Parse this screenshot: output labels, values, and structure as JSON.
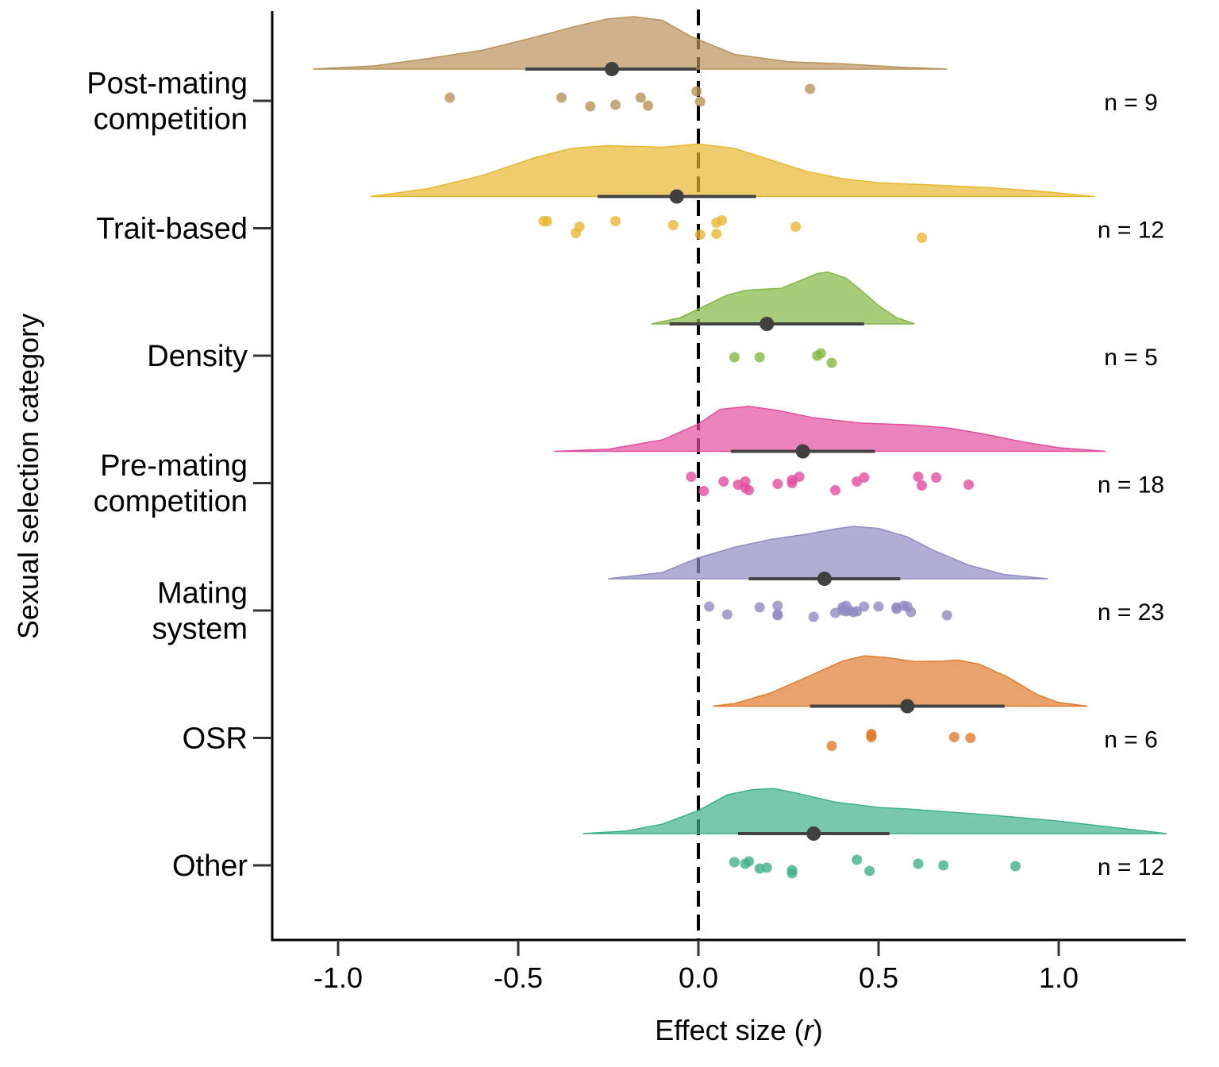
{
  "chart_data": {
    "type": "raincloud",
    "xlabel": "Effect size",
    "xlabel_symbol": "r",
    "ylabel": "Sexual selection category",
    "xlim": [
      -1.2,
      1.4
    ],
    "xticks": [
      {
        "value": -1.0,
        "label": "-1.0"
      },
      {
        "value": -0.5,
        "label": "-0.5"
      },
      {
        "value": 0.0,
        "label": "0.0"
      },
      {
        "value": 0.5,
        "label": "0.5"
      },
      {
        "value": 1.0,
        "label": "1.0"
      }
    ],
    "reference_line": 0.0,
    "categories": [
      {
        "label_lines": [
          "Post-mating",
          "competition"
        ],
        "n_label": "n = 9",
        "color": "#b8925a",
        "mean": -0.24,
        "ci": [
          -0.48,
          -0.005
        ],
        "density_range": [
          -1.07,
          0.69
        ],
        "density": [
          [
            -1.07,
            0.0
          ],
          [
            -0.9,
            0.06
          ],
          [
            -0.75,
            0.2
          ],
          [
            -0.6,
            0.36
          ],
          [
            -0.47,
            0.58
          ],
          [
            -0.35,
            0.8
          ],
          [
            -0.25,
            0.96
          ],
          [
            -0.18,
            1.0
          ],
          [
            -0.1,
            0.93
          ],
          [
            -0.02,
            0.62
          ],
          [
            0.1,
            0.28
          ],
          [
            0.25,
            0.14
          ],
          [
            0.4,
            0.1
          ],
          [
            0.55,
            0.04
          ],
          [
            0.69,
            0.0
          ]
        ],
        "points": [
          [
            -0.69,
            0.3
          ],
          [
            -0.38,
            0.3
          ],
          [
            -0.3,
            -0.25
          ],
          [
            -0.23,
            -0.15
          ],
          [
            -0.16,
            0.3
          ],
          [
            -0.14,
            -0.2
          ],
          [
            -0.005,
            0.7
          ],
          [
            0.005,
            0.05
          ],
          [
            0.31,
            0.85
          ]
        ]
      },
      {
        "label_lines": [
          "Trait-based"
        ],
        "n_label": "n = 12",
        "color": "#e8b731",
        "mean": -0.06,
        "ci": [
          -0.28,
          0.16
        ],
        "density_range": [
          -0.91,
          1.1
        ],
        "density": [
          [
            -0.91,
            0.0
          ],
          [
            -0.75,
            0.15
          ],
          [
            -0.6,
            0.4
          ],
          [
            -0.45,
            0.75
          ],
          [
            -0.35,
            0.92
          ],
          [
            -0.25,
            0.97
          ],
          [
            -0.1,
            0.94
          ],
          [
            0.0,
            1.0
          ],
          [
            0.1,
            0.92
          ],
          [
            0.2,
            0.7
          ],
          [
            0.3,
            0.48
          ],
          [
            0.4,
            0.34
          ],
          [
            0.5,
            0.26
          ],
          [
            0.65,
            0.22
          ],
          [
            0.8,
            0.17
          ],
          [
            0.95,
            0.1
          ],
          [
            1.1,
            0.0
          ]
        ],
        "points": [
          [
            -0.43,
            0.55
          ],
          [
            -0.42,
            0.55
          ],
          [
            -0.33,
            0.2
          ],
          [
            -0.34,
            -0.2
          ],
          [
            -0.23,
            0.55
          ],
          [
            -0.07,
            0.3
          ],
          [
            0.005,
            -0.3
          ],
          [
            0.05,
            0.45
          ],
          [
            0.065,
            0.6
          ],
          [
            0.05,
            -0.25
          ],
          [
            0.27,
            0.2
          ],
          [
            0.62,
            -0.5
          ]
        ]
      },
      {
        "label_lines": [
          "Density"
        ],
        "n_label": "n = 5",
        "color": "#82b843",
        "mean": 0.19,
        "ci": [
          -0.08,
          0.46
        ],
        "density_range": [
          -0.13,
          0.6
        ],
        "density": [
          [
            -0.13,
            0.0
          ],
          [
            -0.05,
            0.12
          ],
          [
            0.02,
            0.35
          ],
          [
            0.08,
            0.55
          ],
          [
            0.13,
            0.64
          ],
          [
            0.18,
            0.66
          ],
          [
            0.23,
            0.68
          ],
          [
            0.28,
            0.82
          ],
          [
            0.33,
            0.96
          ],
          [
            0.36,
            0.99
          ],
          [
            0.41,
            0.87
          ],
          [
            0.45,
            0.65
          ],
          [
            0.5,
            0.35
          ],
          [
            0.55,
            0.12
          ],
          [
            0.6,
            0.0
          ]
        ],
        "points": [
          [
            0.1,
            0.0
          ],
          [
            0.17,
            0.0
          ],
          [
            0.33,
            0.1
          ],
          [
            0.34,
            0.25
          ],
          [
            0.37,
            -0.35
          ]
        ]
      },
      {
        "label_lines": [
          "Pre-mating",
          "competition"
        ],
        "n_label": "n = 18",
        "color": "#e34ea0",
        "mean": 0.29,
        "ci": [
          0.09,
          0.49
        ],
        "density_range": [
          -0.4,
          1.13
        ],
        "density": [
          [
            -0.4,
            0.0
          ],
          [
            -0.25,
            0.04
          ],
          [
            -0.1,
            0.22
          ],
          [
            0.0,
            0.52
          ],
          [
            0.06,
            0.8
          ],
          [
            0.14,
            0.86
          ],
          [
            0.22,
            0.78
          ],
          [
            0.32,
            0.64
          ],
          [
            0.45,
            0.54
          ],
          [
            0.6,
            0.5
          ],
          [
            0.7,
            0.44
          ],
          [
            0.8,
            0.32
          ],
          [
            0.9,
            0.18
          ],
          [
            1.0,
            0.07
          ],
          [
            1.13,
            0.0
          ]
        ],
        "points": [
          [
            -0.02,
            0.5
          ],
          [
            0.07,
            0.2
          ],
          [
            0.11,
            0.0
          ],
          [
            0.13,
            -0.2
          ],
          [
            0.14,
            -0.35
          ],
          [
            0.22,
            0.05
          ],
          [
            0.26,
            0.3
          ],
          [
            0.28,
            0.5
          ],
          [
            0.46,
            0.45
          ],
          [
            0.44,
            0.2
          ],
          [
            0.38,
            -0.35
          ],
          [
            0.61,
            0.5
          ],
          [
            0.62,
            -0.05
          ],
          [
            0.66,
            0.45
          ],
          [
            0.75,
            0.0
          ],
          [
            0.015,
            -0.4
          ],
          [
            0.13,
            0.2
          ],
          [
            0.26,
            0.1
          ]
        ]
      },
      {
        "label_lines": [
          "Mating",
          "system"
        ],
        "n_label": "n = 23",
        "color": "#8e8bc3",
        "mean": 0.35,
        "ci": [
          0.14,
          0.56
        ],
        "density_range": [
          -0.25,
          0.97
        ],
        "density": [
          [
            -0.25,
            0.0
          ],
          [
            -0.1,
            0.12
          ],
          [
            0.0,
            0.4
          ],
          [
            0.1,
            0.6
          ],
          [
            0.2,
            0.75
          ],
          [
            0.3,
            0.85
          ],
          [
            0.38,
            0.95
          ],
          [
            0.43,
            1.0
          ],
          [
            0.5,
            0.96
          ],
          [
            0.58,
            0.8
          ],
          [
            0.65,
            0.55
          ],
          [
            0.75,
            0.26
          ],
          [
            0.85,
            0.08
          ],
          [
            0.97,
            0.0
          ]
        ],
        "points": [
          [
            0.03,
            0.35
          ],
          [
            0.08,
            -0.15
          ],
          [
            0.17,
            0.3
          ],
          [
            0.22,
            0.4
          ],
          [
            0.22,
            -0.15
          ],
          [
            0.22,
            -0.2
          ],
          [
            0.32,
            -0.3
          ],
          [
            0.38,
            -0.05
          ],
          [
            0.4,
            0.3
          ],
          [
            0.41,
            0.4
          ],
          [
            0.42,
            0.1
          ],
          [
            0.43,
            0.0
          ],
          [
            0.46,
            0.35
          ],
          [
            0.5,
            0.35
          ],
          [
            0.55,
            0.2
          ],
          [
            0.57,
            0.4
          ],
          [
            0.59,
            0.0
          ],
          [
            0.69,
            -0.2
          ],
          [
            0.4,
            0.1
          ],
          [
            0.41,
            0.05
          ],
          [
            0.55,
            0.3
          ],
          [
            0.58,
            0.35
          ],
          [
            0.44,
            0.05
          ]
        ]
      },
      {
        "label_lines": [
          "OSR"
        ],
        "n_label": "n = 6",
        "color": "#e07b2e",
        "mean": 0.58,
        "ci": [
          0.31,
          0.85
        ],
        "density_range": [
          0.04,
          1.08
        ],
        "density": [
          [
            0.04,
            0.0
          ],
          [
            0.1,
            0.05
          ],
          [
            0.2,
            0.25
          ],
          [
            0.3,
            0.55
          ],
          [
            0.4,
            0.86
          ],
          [
            0.46,
            0.96
          ],
          [
            0.52,
            0.93
          ],
          [
            0.6,
            0.85
          ],
          [
            0.68,
            0.86
          ],
          [
            0.72,
            0.88
          ],
          [
            0.78,
            0.8
          ],
          [
            0.86,
            0.55
          ],
          [
            0.94,
            0.22
          ],
          [
            1.0,
            0.07
          ],
          [
            1.08,
            0.0
          ]
        ],
        "points": [
          [
            0.37,
            -0.4
          ],
          [
            0.48,
            0.35
          ],
          [
            0.48,
            0.15
          ],
          [
            0.71,
            0.15
          ],
          [
            0.755,
            0.1
          ],
          [
            0.48,
            0.25
          ]
        ]
      },
      {
        "label_lines": [
          "Other"
        ],
        "n_label": "n = 12",
        "color": "#3eb08a",
        "mean": 0.32,
        "ci": [
          0.11,
          0.53
        ],
        "density_range": [
          -0.32,
          1.3
        ],
        "density": [
          [
            -0.32,
            0.0
          ],
          [
            -0.2,
            0.05
          ],
          [
            -0.1,
            0.18
          ],
          [
            0.0,
            0.44
          ],
          [
            0.08,
            0.74
          ],
          [
            0.15,
            0.84
          ],
          [
            0.21,
            0.86
          ],
          [
            0.28,
            0.76
          ],
          [
            0.38,
            0.6
          ],
          [
            0.5,
            0.5
          ],
          [
            0.6,
            0.46
          ],
          [
            0.8,
            0.36
          ],
          [
            1.0,
            0.24
          ],
          [
            1.15,
            0.12
          ],
          [
            1.3,
            0.0
          ]
        ],
        "points": [
          [
            0.1,
            0.3
          ],
          [
            0.13,
            0.2
          ],
          [
            0.14,
            0.35
          ],
          [
            0.17,
            -0.1
          ],
          [
            0.19,
            -0.05
          ],
          [
            0.26,
            -0.2
          ],
          [
            0.26,
            -0.4
          ],
          [
            0.44,
            0.45
          ],
          [
            0.475,
            -0.25
          ],
          [
            0.61,
            0.2
          ],
          [
            0.68,
            0.1
          ],
          [
            0.88,
            0.05
          ]
        ]
      }
    ]
  }
}
